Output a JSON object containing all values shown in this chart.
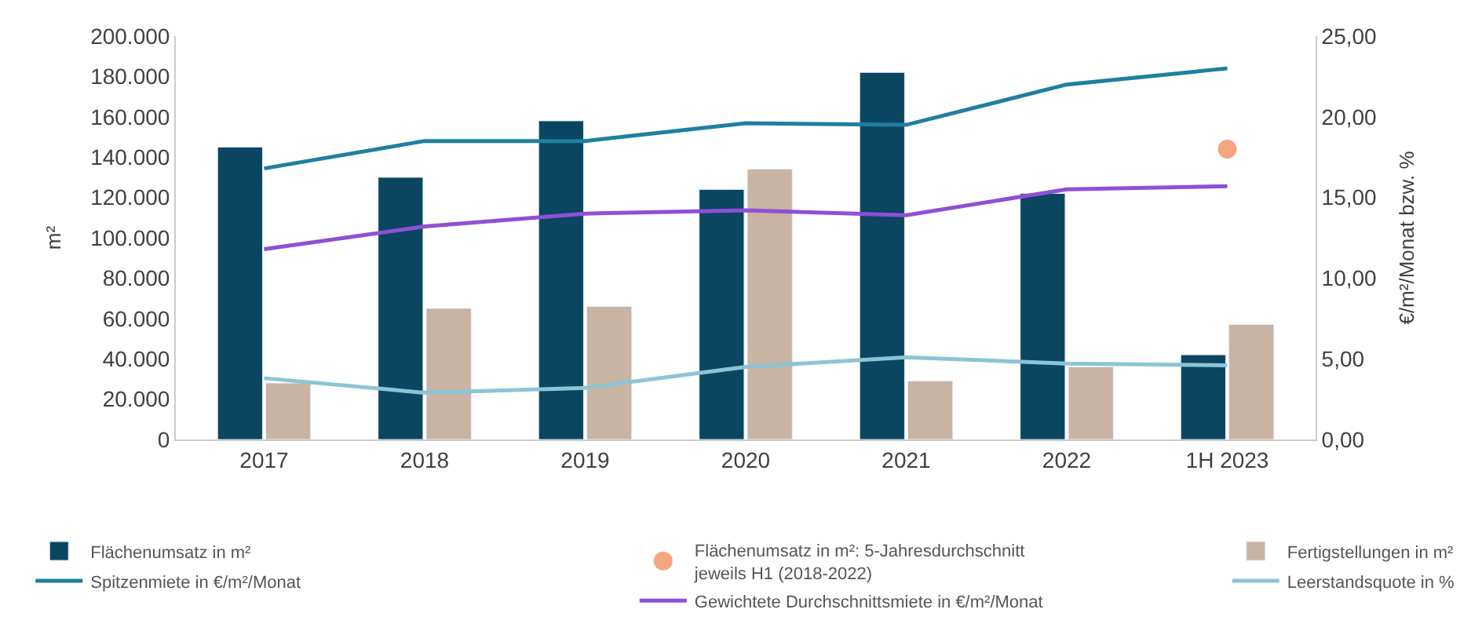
{
  "chart_data": {
    "type": "bar",
    "ylabel": "m²",
    "y2label": "€/m²/Monat bzw. %",
    "categories": [
      "2017",
      "2018",
      "2019",
      "2020",
      "2021",
      "2022",
      "1H 2023"
    ],
    "series": [
      {
        "name": "Flächenumsatz in m²",
        "color": "#0b4660",
        "values": [
          145000,
          130000,
          158000,
          124000,
          182000,
          122000,
          42000
        ]
      },
      {
        "name": "Flächenumsatz in m²: 5-Jahresdurchschnitt jeweils H1 (2018-2022)",
        "type": "scatter",
        "marker": "circle",
        "color": "#f4a582",
        "values": [
          null,
          null,
          null,
          null,
          null,
          null,
          144000
        ]
      },
      {
        "name": "Fertigstellungen in m²",
        "color": "#c9b3a3",
        "values": [
          28000,
          65000,
          66000,
          134000,
          29000,
          36000,
          57000
        ]
      },
      {
        "name": "Spitzenmiete in €/m²/Monat",
        "type": "line",
        "axis": "y2",
        "color": "#1f7fa0",
        "values": [
          16.8,
          18.5,
          18.5,
          19.6,
          19.5,
          22.0,
          23.0
        ]
      },
      {
        "name": "Gewichtete Durchschnittsmiete in €/m²/Monat",
        "type": "line",
        "axis": "y2",
        "color": "#8f4fd6",
        "values": [
          11.8,
          13.2,
          14.0,
          14.2,
          13.9,
          15.5,
          15.7
        ]
      },
      {
        "name": "Leerstandsquote in %",
        "type": "line",
        "axis": "y2",
        "color": "#8cc4d6",
        "values": [
          3.8,
          2.9,
          3.2,
          4.5,
          5.1,
          4.7,
          4.6
        ]
      }
    ],
    "ylim": [
      0,
      200000
    ],
    "yticks": [
      {
        "value": 0,
        "label": "0"
      },
      {
        "value": 20000,
        "label": "20.000"
      },
      {
        "value": 40000,
        "label": "40.000"
      },
      {
        "value": 60000,
        "label": "60.000"
      },
      {
        "value": 80000,
        "label": "80.000"
      },
      {
        "value": 100000,
        "label": "100.000"
      },
      {
        "value": 120000,
        "label": "120.000"
      },
      {
        "value": 140000,
        "label": "140.000"
      },
      {
        "value": 160000,
        "label": "160.000"
      },
      {
        "value": 180000,
        "label": "180.000"
      },
      {
        "value": 200000,
        "label": "200.000"
      }
    ],
    "y2lim": [
      0,
      25
    ],
    "y2ticks": [
      {
        "value": 0,
        "label": "0,00"
      },
      {
        "value": 5,
        "label": "5,00"
      },
      {
        "value": 10,
        "label": "10,00"
      },
      {
        "value": 15,
        "label": "15,00"
      },
      {
        "value": 20,
        "label": "20,00"
      },
      {
        "value": 25,
        "label": "25,00"
      }
    ],
    "grid": false,
    "legend": "bottom",
    "line_style": "solid"
  }
}
